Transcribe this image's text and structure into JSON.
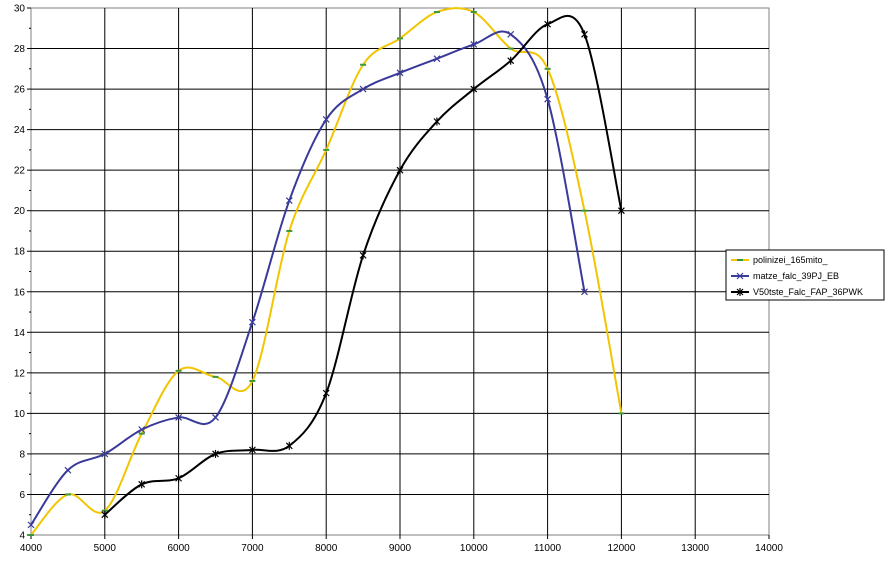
{
  "chart_data": {
    "type": "line",
    "title": "",
    "xlabel": "",
    "ylabel": "",
    "xlim": [
      4000,
      14000
    ],
    "ylim": [
      4,
      30
    ],
    "xticks": [
      4000,
      5000,
      6000,
      7000,
      8000,
      9000,
      10000,
      11000,
      12000,
      13000,
      14000
    ],
    "yticks": [
      4,
      6,
      8,
      10,
      12,
      14,
      16,
      18,
      20,
      22,
      24,
      26,
      28,
      30
    ],
    "grid": true,
    "legend_position": "right",
    "series": [
      {
        "name": "polinizei_165mito_",
        "color": "#f2c500",
        "marker": "dash",
        "marker_color": "#3a9a3a",
        "x": [
          4000,
          4500,
          5000,
          5500,
          6000,
          6500,
          7000,
          7500,
          8000,
          8500,
          9000,
          9500,
          10000,
          10500,
          11000,
          11500,
          12000
        ],
        "y": [
          4,
          6,
          5.2,
          9,
          12.1,
          11.8,
          11.6,
          19,
          23,
          27.2,
          28.5,
          29.8,
          29.8,
          28,
          27,
          20,
          10
        ]
      },
      {
        "name": "matze_falc_39PJ_EB",
        "color": "#3a3a9a",
        "marker": "x",
        "marker_color": "#3a3a9a",
        "x": [
          4000,
          4500,
          5000,
          5500,
          6000,
          6500,
          7000,
          7500,
          8000,
          8500,
          9000,
          9500,
          10000,
          10500,
          11000,
          11500
        ],
        "y": [
          4.5,
          7.2,
          8,
          9.2,
          9.8,
          9.8,
          14.5,
          20.5,
          24.5,
          26,
          26.8,
          27.5,
          28.2,
          28.7,
          25.5,
          16
        ]
      },
      {
        "name": "V50tste_Falc_FAP_36PWK",
        "color": "#000000",
        "marker": "star",
        "marker_color": "#000000",
        "x": [
          5000,
          5500,
          6000,
          6500,
          7000,
          7500,
          8000,
          8500,
          9000,
          9500,
          10000,
          10500,
          11000,
          11500,
          12000
        ],
        "y": [
          5,
          6.5,
          6.8,
          8,
          8.2,
          8.4,
          11,
          17.8,
          22,
          24.4,
          26,
          27.4,
          29.2,
          28.7,
          20
        ]
      }
    ]
  }
}
